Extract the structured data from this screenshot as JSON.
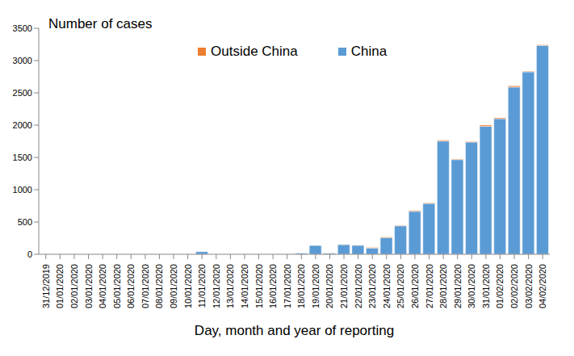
{
  "chart_data": {
    "type": "bar",
    "y_label": "Number of cases",
    "x_label": "Day, month and year of reporting",
    "categories": [
      "31/12/2019",
      "01/01/2020",
      "02/01/2020",
      "03/01/2020",
      "04/01/2020",
      "05/01/2020",
      "06/01/2020",
      "07/01/2020",
      "08/01/2020",
      "09/01/2020",
      "10/01/2020",
      "11/01/2020",
      "12/01/2020",
      "13/01/2020",
      "14/01/2020",
      "15/01/2020",
      "16/01/2020",
      "17/01/2020",
      "18/01/2020",
      "19/01/2020",
      "20/01/2020",
      "21/01/2020",
      "22/01/2020",
      "23/01/2020",
      "24/01/2020",
      "25/01/2020",
      "26/01/2020",
      "27/01/2020",
      "28/01/2020",
      "29/01/2020",
      "30/01/2020",
      "31/01/2020",
      "01/02/2020",
      "02/02/2020",
      "03/02/2020",
      "04/02/2020"
    ],
    "series": [
      {
        "name": "Outside China",
        "color": "#ed7d31",
        "values": [
          0,
          0,
          0,
          0,
          0,
          0,
          0,
          0,
          0,
          0,
          0,
          0,
          0,
          0,
          0,
          0,
          0,
          2,
          0,
          0,
          2,
          3,
          3,
          10,
          10,
          8,
          12,
          10,
          14,
          10,
          10,
          20,
          15,
          20,
          10,
          10
        ]
      },
      {
        "name": "China",
        "color": "#5b9bd5",
        "values": [
          0,
          0,
          0,
          0,
          0,
          0,
          0,
          0,
          0,
          0,
          0,
          41,
          0,
          0,
          0,
          0,
          0,
          4,
          17,
          136,
          19,
          151,
          140,
          97,
          259,
          441,
          665,
          787,
          1753,
          1466,
          1737,
          1981,
          2099,
          2589,
          2825,
          3235
        ]
      }
    ],
    "stacked": true,
    "legend": "top",
    "ylim": [
      0,
      3500
    ],
    "yticks": [
      0,
      500,
      1000,
      1500,
      2000,
      2500,
      3000,
      3500
    ],
    "grid": false
  }
}
